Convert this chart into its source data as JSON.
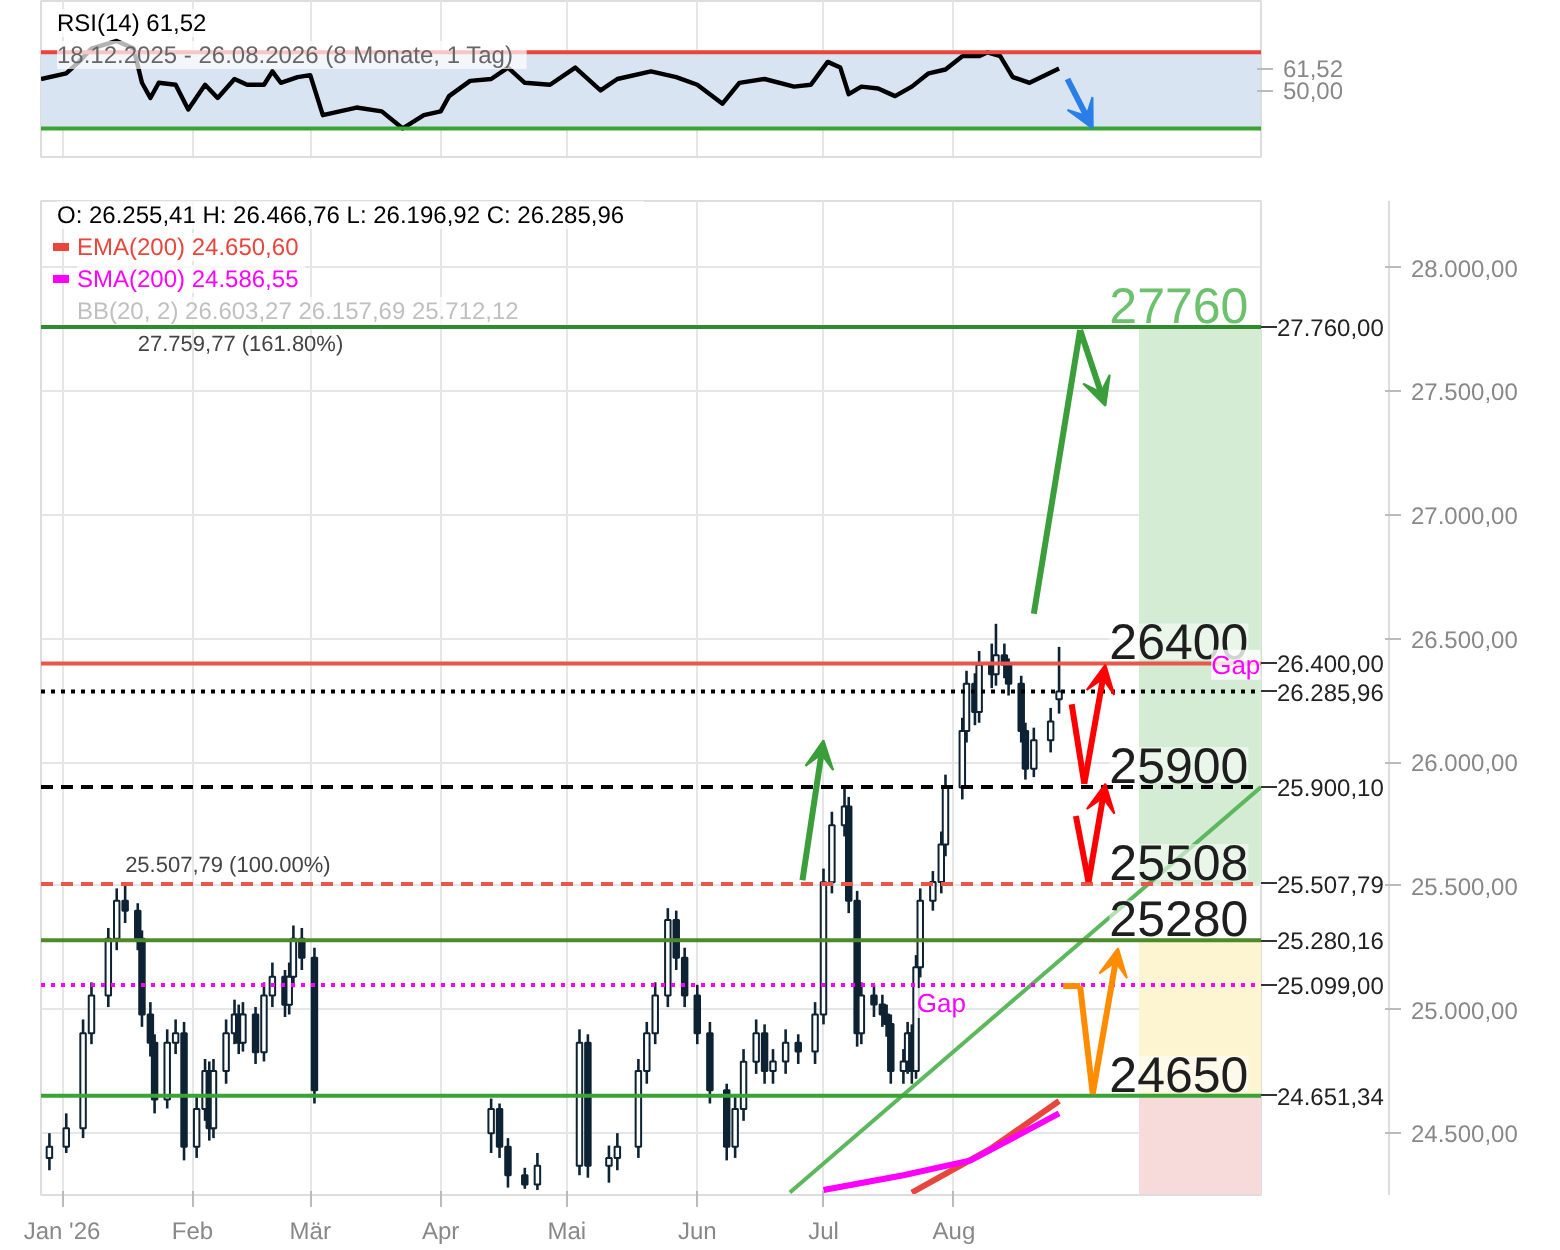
{
  "chart_data": [
    {
      "type": "line",
      "title": "RSI(14)  61,52",
      "subtitle": "18.12.2025 - 26.08.2026   (8 Monate, 1 Tag)",
      "x": [
        "2025-12-27",
        "2026-01-02",
        "2026-01-05",
        "2026-01-08",
        "2026-01-14",
        "2026-01-18",
        "2026-01-20",
        "2026-01-22",
        "2026-01-24",
        "2026-01-28",
        "2026-01-31",
        "2026-02-04",
        "2026-02-07",
        "2026-02-11",
        "2026-02-14",
        "2026-02-18",
        "2026-02-20",
        "2026-02-22",
        "2026-02-26",
        "2026-03-01",
        "2026-03-04",
        "2026-03-08",
        "2026-03-12",
        "2026-03-18",
        "2026-03-23",
        "2026-03-28",
        "2026-04-01",
        "2026-04-03",
        "2026-04-08",
        "2026-04-13",
        "2026-04-17",
        "2026-04-21",
        "2026-04-27",
        "2026-05-03",
        "2026-05-09",
        "2026-05-13",
        "2026-05-21",
        "2026-05-27",
        "2026-06-01",
        "2026-06-07",
        "2026-06-11",
        "2026-06-17",
        "2026-06-24",
        "2026-06-28",
        "2026-07-02",
        "2026-07-05",
        "2026-07-07",
        "2026-07-10",
        "2026-07-14",
        "2026-07-18",
        "2026-07-22",
        "2026-07-26",
        "2026-07-30",
        "2026-08-03",
        "2026-08-07",
        "2026-08-09",
        "2026-08-12",
        "2026-08-15",
        "2026-08-19",
        "2026-08-26"
      ],
      "values": [
        56,
        59,
        65,
        72,
        76,
        72,
        54,
        46,
        54,
        53,
        40,
        53,
        46,
        56,
        53,
        53,
        60,
        54,
        57,
        58,
        37,
        39,
        41,
        39,
        30,
        37,
        39,
        47,
        55,
        56,
        62,
        54,
        53,
        62,
        50,
        56,
        60,
        57,
        53,
        43,
        54,
        56,
        52,
        53,
        65,
        62,
        48,
        52,
        51,
        47,
        52,
        59,
        61,
        68,
        68,
        70,
        68,
        57,
        54,
        61.52
      ],
      "color": "#000000",
      "xlim": [
        "2025-12-27",
        "2026-10-13"
      ],
      "ylim": [
        15,
        97
      ],
      "yticks": [
        {
          "value": 50,
          "label": "50,00"
        },
        {
          "value": 61.52,
          "label": "61,52"
        }
      ],
      "xticks": [
        {
          "value": "2026-01-01",
          "label": null
        },
        {
          "value": "2026-02-01",
          "label": null
        },
        {
          "value": "2026-03-01",
          "label": null
        },
        {
          "value": "2026-04-01",
          "label": null
        },
        {
          "value": "2026-05-01",
          "label": null
        },
        {
          "value": "2026-06-01",
          "label": null
        },
        {
          "value": "2026-07-01",
          "label": null
        },
        {
          "value": "2026-08-01",
          "label": null
        }
      ],
      "tick_labels": "y",
      "grid": true,
      "ref_lines": [
        {
          "axis": "y",
          "value": 70,
          "color": "#e8453c"
        },
        {
          "axis": "y",
          "value": 30,
          "color": "#3aa335"
        }
      ],
      "bands": [
        {
          "axis": "y",
          "from": 30,
          "to": 70,
          "color": "#d8e4f1"
        }
      ]
    },
    {
      "type": "candlestick",
      "title": "O: 26.255,41  H: 26.466,76  L: 26.196,92  C: 26.285,96",
      "x": [
        "2025-12-29",
        "2026-01-02",
        "2026-01-06",
        "2026-01-08",
        "2026-01-12",
        "2026-01-14",
        "2026-01-16",
        "2026-01-19",
        "2026-01-20",
        "2026-01-22",
        "2026-01-23",
        "2026-01-26",
        "2026-01-28",
        "2026-01-30",
        "2026-02-02",
        "2026-02-04",
        "2026-02-05",
        "2026-02-06",
        "2026-02-09",
        "2026-02-11",
        "2026-02-12",
        "2026-02-13",
        "2026-02-16",
        "2026-02-18",
        "2026-02-20",
        "2026-02-23",
        "2026-02-24",
        "2026-02-25",
        "2026-02-27",
        "2026-03-02",
        "2026-04-13",
        "2026-04-15",
        "2026-04-17",
        "2026-04-21",
        "2026-04-24",
        "2026-05-04",
        "2026-05-06",
        "2026-05-11",
        "2026-05-13",
        "2026-05-18",
        "2026-05-20",
        "2026-05-22",
        "2026-05-25",
        "2026-05-27",
        "2026-05-29",
        "2026-06-01",
        "2026-06-04",
        "2026-06-08",
        "2026-06-10",
        "2026-06-12",
        "2026-06-15",
        "2026-06-17",
        "2026-06-19",
        "2026-06-22",
        "2026-06-25",
        "2026-06-29",
        "2026-07-01",
        "2026-07-03",
        "2026-07-06",
        "2026-07-07",
        "2026-07-09",
        "2026-07-10",
        "2026-07-13",
        "2026-07-15",
        "2026-07-16",
        "2026-07-17",
        "2026-07-20",
        "2026-07-21",
        "2026-07-22",
        "2026-07-23",
        "2026-07-24",
        "2026-07-27",
        "2026-07-29",
        "2026-07-30",
        "2026-08-03",
        "2026-08-04",
        "2026-08-06",
        "2026-08-07",
        "2026-08-10",
        "2026-08-11",
        "2026-08-13",
        "2026-08-14",
        "2026-08-17",
        "2026-08-18",
        "2026-08-20",
        "2026-08-24",
        "2026-08-26"
      ],
      "ohlc": [
        [
          24400,
          24500,
          24350,
          24445
        ],
        [
          24445,
          24580,
          24420,
          24520
        ],
        [
          24520,
          24960,
          24480,
          24904
        ],
        [
          24904,
          25110,
          24860,
          25057
        ],
        [
          25057,
          25330,
          25010,
          25286
        ],
        [
          25286,
          25490,
          25240,
          25440
        ],
        [
          25440,
          25500,
          25350,
          25400
        ],
        [
          25400,
          25430,
          25240,
          25286
        ],
        [
          25286,
          25320,
          24930,
          24980
        ],
        [
          24980,
          25030,
          24810,
          24866
        ],
        [
          24866,
          24900,
          24580,
          24636
        ],
        [
          24636,
          24920,
          24600,
          24866
        ],
        [
          24866,
          24960,
          24820,
          24904
        ],
        [
          24904,
          24950,
          24390,
          24445
        ],
        [
          24445,
          24650,
          24400,
          24598
        ],
        [
          24598,
          24800,
          24550,
          24751
        ],
        [
          24751,
          24790,
          24470,
          24520
        ],
        [
          24520,
          24800,
          24480,
          24751
        ],
        [
          24751,
          24960,
          24700,
          24904
        ],
        [
          24904,
          25040,
          24860,
          24980
        ],
        [
          24980,
          25020,
          24820,
          24866
        ],
        [
          24866,
          25030,
          24830,
          24980
        ],
        [
          24980,
          25010,
          24780,
          24827
        ],
        [
          24827,
          25110,
          24790,
          25057
        ],
        [
          25057,
          25190,
          25010,
          25133
        ],
        [
          25133,
          25160,
          24970,
          25019
        ],
        [
          25019,
          25190,
          24980,
          25133
        ],
        [
          25133,
          25340,
          25090,
          25286
        ],
        [
          25286,
          25330,
          25160,
          25210
        ],
        [
          25210,
          25250,
          24620,
          24674
        ],
        [
          24500,
          24640,
          24420,
          24598
        ],
        [
          24598,
          24620,
          24400,
          24445
        ],
        [
          24445,
          24480,
          24280,
          24330
        ],
        [
          24330,
          24360,
          24275,
          24292
        ],
        [
          24292,
          24420,
          24270,
          24368
        ],
        [
          24368,
          24920,
          24330,
          24866
        ],
        [
          24866,
          24900,
          24320,
          24368
        ],
        [
          24368,
          24450,
          24300,
          24400
        ],
        [
          24400,
          24500,
          24350,
          24445
        ],
        [
          24445,
          24800,
          24400,
          24751
        ],
        [
          24751,
          24950,
          24700,
          24904
        ],
        [
          24904,
          25110,
          24860,
          25057
        ],
        [
          25057,
          25410,
          25010,
          25362
        ],
        [
          25362,
          25400,
          25160,
          25210
        ],
        [
          25210,
          25250,
          25010,
          25057
        ],
        [
          25057,
          25100,
          24860,
          24904
        ],
        [
          24904,
          24950,
          24620,
          24674
        ],
        [
          24674,
          24700,
          24390,
          24445
        ],
        [
          24445,
          24650,
          24400,
          24598
        ],
        [
          24598,
          24840,
          24550,
          24789
        ],
        [
          24789,
          24960,
          24740,
          24904
        ],
        [
          24904,
          24940,
          24700,
          24751
        ],
        [
          24751,
          24840,
          24700,
          24790
        ],
        [
          24790,
          24920,
          24740,
          24866
        ],
        [
          24866,
          24900,
          24780,
          24830
        ],
        [
          24830,
          25030,
          24780,
          24980
        ],
        [
          24980,
          25570,
          24940,
          25515
        ],
        [
          25515,
          25800,
          25470,
          25745
        ],
        [
          25745,
          25900,
          25700,
          25821
        ],
        [
          25821,
          25860,
          25390,
          25440
        ],
        [
          25440,
          25480,
          24850,
          24904
        ],
        [
          24904,
          25110,
          24860,
          25057
        ],
        [
          25057,
          25100,
          24970,
          25020
        ],
        [
          25020,
          25060,
          24930,
          24980
        ],
        [
          24980,
          25020,
          24890,
          24942
        ],
        [
          24942,
          24980,
          24700,
          24751
        ],
        [
          24751,
          24840,
          24700,
          24790
        ],
        [
          24790,
          24950,
          24740,
          24904
        ],
        [
          24904,
          24940,
          24700,
          24751
        ],
        [
          24751,
          25220,
          24720,
          25171
        ],
        [
          25171,
          25490,
          25130,
          25440
        ],
        [
          25440,
          25560,
          25400,
          25516
        ],
        [
          25516,
          25720,
          25470,
          25668
        ],
        [
          25668,
          25950,
          25620,
          25898
        ],
        [
          25898,
          26180,
          25850,
          26127
        ],
        [
          26127,
          26370,
          26080,
          26318
        ],
        [
          26318,
          26360,
          26150,
          26203
        ],
        [
          26203,
          26450,
          26160,
          26394
        ],
        [
          26394,
          26480,
          26300,
          26356
        ],
        [
          26356,
          26560,
          26310,
          26433
        ],
        [
          26433,
          26480,
          26340,
          26394
        ],
        [
          26394,
          26420,
          26270,
          26318
        ],
        [
          26318,
          26350,
          26080,
          26127
        ],
        [
          26127,
          26160,
          25930,
          25974
        ],
        [
          25974,
          26140,
          25940,
          26089
        ],
        [
          26089,
          26220,
          26040,
          26165
        ],
        [
          26255.41,
          26466.76,
          26196.92,
          26285.96
        ]
      ],
      "series": [
        {
          "name": "EMA(200)  24.650,60",
          "type": "line",
          "color": "#e8453c",
          "x": [
            "2026-07-22",
            "2026-08-10",
            "2026-08-26"
          ],
          "values": [
            24260,
            24440,
            24630
          ]
        },
        {
          "name": "SMA(200)  24.586,55",
          "type": "line",
          "color": "#ff00ff",
          "x": [
            "2026-07-01",
            "2026-07-20",
            "2026-08-05",
            "2026-08-26"
          ],
          "values": [
            24270,
            24330,
            24390,
            24580
          ]
        },
        {
          "type": "line",
          "color": "#5cb85c",
          "x": [
            "2026-06-23",
            "2026-10-13"
          ],
          "values": [
            24260,
            25900
          ]
        }
      ],
      "legend": "top left",
      "grid": true,
      "xlim": [
        "2025-12-27",
        "2026-10-13"
      ],
      "ylim": [
        24250,
        28270
      ],
      "xticks": [
        {
          "value": "2026-01-01",
          "label": "Jan '26"
        },
        {
          "value": "2026-02-01",
          "label": "Feb"
        },
        {
          "value": "2026-03-01",
          "label": "Mär"
        },
        {
          "value": "2026-04-01",
          "label": "Apr"
        },
        {
          "value": "2026-05-01",
          "label": "Mai"
        },
        {
          "value": "2026-06-01",
          "label": "Jun"
        },
        {
          "value": "2026-07-01",
          "label": "Jul"
        },
        {
          "value": "2026-08-01",
          "label": "Aug"
        }
      ],
      "yticks": [
        {
          "value": 24500,
          "label": "24.500,00"
        },
        {
          "value": 25000,
          "label": "25.000,00"
        },
        {
          "value": 25500,
          "label": "25.500,00"
        },
        {
          "value": 26000,
          "label": "26.000,00"
        },
        {
          "value": 26500,
          "label": "26.500,00"
        },
        {
          "value": 27000,
          "label": "27.000,00"
        },
        {
          "value": 27500,
          "label": "27.500,00"
        },
        {
          "value": 28000,
          "label": "28.000,00"
        }
      ],
      "ref_lines": [
        {
          "axis": "y",
          "value": 27760,
          "label": "27.760,00",
          "color": "#2e8b2e",
          "line_style": "solid"
        },
        {
          "axis": "y",
          "value": 26400,
          "label": "26.400,00",
          "color": "#e8574c",
          "line_style": "solid"
        },
        {
          "axis": "y",
          "value": 26285.96,
          "label": "26.285,96",
          "color": "#000000",
          "line_style": "dotted"
        },
        {
          "axis": "y",
          "value": 25900.1,
          "label": "25.900,10",
          "color": "#000000",
          "line_style": "dashed"
        },
        {
          "axis": "y",
          "value": 25507.79,
          "label": "25.507,79",
          "color": "#e8574c",
          "line_style": "dashed"
        },
        {
          "axis": "y",
          "value": 25280.16,
          "label": "25.280,16",
          "color": "#4f8a2a",
          "line_style": "solid"
        },
        {
          "axis": "y",
          "value": 25099,
          "label": "25.099,00",
          "color": "#ff00ff",
          "line_style": "dotted"
        },
        {
          "axis": "y",
          "value": 24651.34,
          "label": "24.651,34",
          "color": "#3aa335",
          "line_style": "solid"
        }
      ],
      "bands": [
        {
          "axis": "y",
          "from": 25507.79,
          "to": 27760,
          "color": "#d3ecd3"
        },
        {
          "axis": "y",
          "from": 24651.34,
          "to": 25280.16,
          "color": "#fdf4d2"
        },
        {
          "axis": "y",
          "from": 24250,
          "to": 24651.34,
          "color": "#f7dada"
        }
      ],
      "annotations": [
        {
          "text": "27760",
          "x": "2026-10-10",
          "y": 27760
        },
        {
          "text": "26400",
          "x": "2026-10-10",
          "y": 26400
        },
        {
          "text": "25900",
          "x": "2026-10-10",
          "y": 25900.1
        },
        {
          "text": "25508",
          "x": "2026-10-10",
          "y": 25507.79
        },
        {
          "text": "25280",
          "x": "2026-10-10",
          "y": 25280.16
        },
        {
          "text": "24650",
          "x": "2026-10-10",
          "y": 24651.34
        },
        {
          "text": "Gap",
          "x": "2026-07-29",
          "y": 25026
        },
        {
          "text": "Gap",
          "x": "2026-10-07",
          "y": 26394
        },
        {
          "text": "25.507,79 (100.00%)",
          "x": "2026-01-16",
          "y": 25507.79
        },
        {
          "text": "27.759,77 (161.80%)",
          "x": "2026-01-19",
          "y": 27759.77
        },
        "BB(20, 2)  26.603,27  26.157,69  25.712,12"
      ]
    }
  ]
}
